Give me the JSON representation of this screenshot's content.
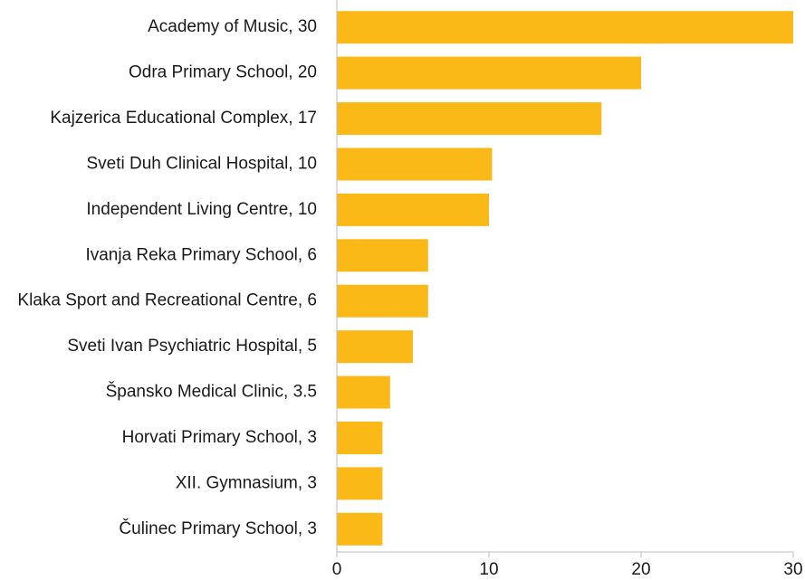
{
  "chart_data": {
    "type": "barh",
    "categories": [
      "Academy of Music, 30",
      "Odra Primary School,  20",
      "Kajzerica Educational Complex,  17",
      "Sveti Duh Clinical Hospital, 10",
      "Independent Living Centre, 10",
      "Ivanja Reka Primary School, 6",
      "Klaka Sport and Recreational Centre, 6",
      "Sveti Ivan Psychiatric Hospital, 5",
      "Špansko Medical Clinic, 3.5",
      "Horvati Primary School, 3",
      "XII. Gymnasium, 3",
      "Čulinec Primary School, 3"
    ],
    "values": [
      30,
      20,
      17.4,
      10.2,
      10,
      6,
      6,
      5,
      3.5,
      3,
      3,
      3
    ],
    "color": "#fbb917",
    "xlim": [
      0,
      30
    ],
    "xticks": [
      0,
      10,
      20,
      30
    ]
  }
}
